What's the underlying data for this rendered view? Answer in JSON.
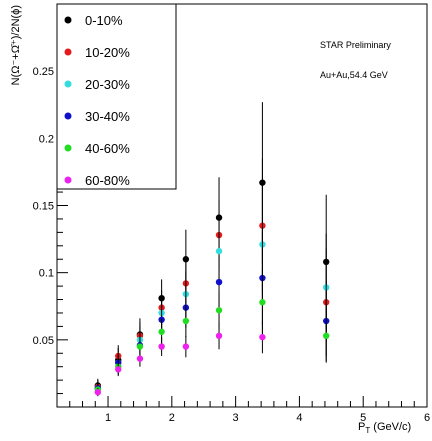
{
  "chart_data": {
    "type": "scatter",
    "title": "",
    "xlabel": "P",
    "xlabel_sub": "T",
    "xlabel_unit": " (GeV/c)",
    "ylabel": "N(Ω⁻+Ω̄⁺)/2N(ϕ)",
    "xlim": [
      0.2,
      6.0
    ],
    "ylim": [
      0.0,
      0.3
    ],
    "xticks": [
      1,
      2,
      3,
      4,
      5,
      6
    ],
    "yticks": [
      0.05,
      0.1,
      0.15,
      0.2,
      0.25
    ],
    "ytick_labels": [
      "0.05",
      "0.1",
      "0.15",
      "0.2",
      "0.25"
    ],
    "grid": false,
    "legend_position": "top-left",
    "annotations": [
      "STAR Preliminary",
      "Au+Au,54.4 GeV"
    ],
    "x": [
      0.84,
      1.16,
      1.5,
      1.84,
      2.22,
      2.74,
      3.42,
      4.42
    ],
    "series": [
      {
        "name": "0-10%",
        "color": "#000000",
        "values": [
          0.016,
          0.035,
          0.054,
          0.081,
          0.11,
          0.141,
          0.167,
          0.108
        ],
        "errors": [
          0.005,
          0.009,
          0.012,
          0.014,
          0.022,
          0.03,
          0.06,
          0.05
        ]
      },
      {
        "name": "10-20%",
        "color": "#e41a1c",
        "values": [
          0.015,
          0.038,
          0.053,
          0.074,
          0.092,
          0.128,
          0.135,
          0.078
        ],
        "errors": [
          0.005,
          0.008,
          0.01,
          0.013,
          0.02,
          0.026,
          0.05,
          0.04
        ]
      },
      {
        "name": "20-30%",
        "color": "#33dddd",
        "values": [
          0.014,
          0.033,
          0.05,
          0.07,
          0.084,
          0.116,
          0.121,
          0.089
        ],
        "errors": [
          0.004,
          0.007,
          0.01,
          0.012,
          0.017,
          0.024,
          0.045,
          0.04
        ]
      },
      {
        "name": "30-40%",
        "color": "#1010cc",
        "values": [
          0.014,
          0.033,
          0.046,
          0.065,
          0.074,
          0.093,
          0.096,
          0.064
        ],
        "errors": [
          0.004,
          0.007,
          0.009,
          0.011,
          0.015,
          0.02,
          0.035,
          0.03
        ]
      },
      {
        "name": "40-60%",
        "color": "#22dd22",
        "values": [
          0.013,
          0.03,
          0.045,
          0.056,
          0.064,
          0.072,
          0.078,
          0.053
        ],
        "errors": [
          0.004,
          0.006,
          0.008,
          0.01,
          0.012,
          0.014,
          0.025,
          0.02
        ]
      },
      {
        "name": "60-80%",
        "color": "#ee22ee",
        "values": [
          0.011,
          0.028,
          0.036,
          0.045,
          0.045,
          0.053,
          0.052,
          null
        ],
        "errors": [
          0.003,
          0.005,
          0.006,
          0.007,
          0.008,
          0.01,
          0.012,
          null
        ]
      }
    ]
  }
}
